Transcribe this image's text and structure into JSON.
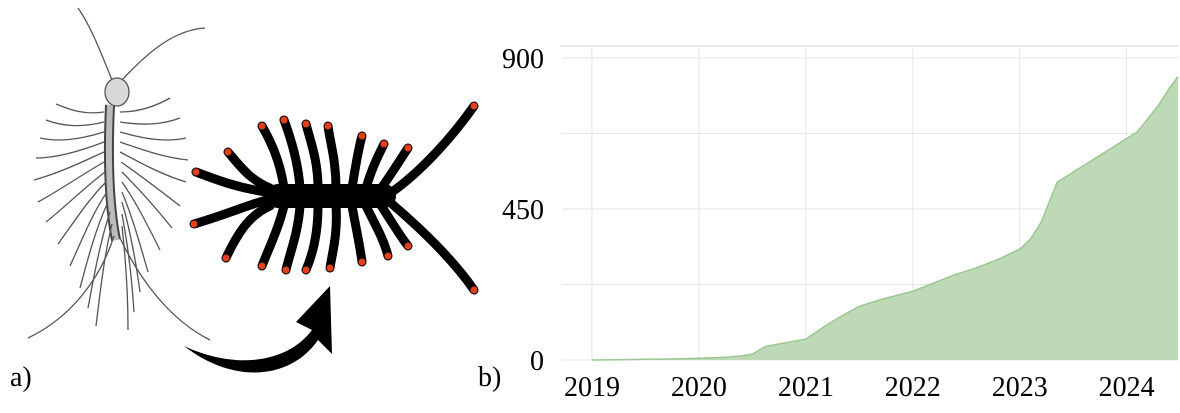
{
  "panels": {
    "a_label": "a)",
    "b_label": "b)"
  },
  "chart_data": {
    "type": "area",
    "title": "",
    "xlabel": "",
    "ylabel": "",
    "color": "#bdd9b5",
    "line_color": "#9cc792",
    "grid": true,
    "xlim": [
      2018.72,
      2024.48
    ],
    "ylim": [
      0,
      900
    ],
    "x_ticks": [
      {
        "value": 2019,
        "label": "2019"
      },
      {
        "value": 2020,
        "label": "2020"
      },
      {
        "value": 2021,
        "label": "2021"
      },
      {
        "value": 2022,
        "label": "2022"
      },
      {
        "value": 2023,
        "label": "2023"
      },
      {
        "value": 2024,
        "label": "2024"
      }
    ],
    "y_ticks": [
      {
        "value": 0,
        "label": "0"
      },
      {
        "value": 450,
        "label": "450"
      },
      {
        "value": 900,
        "label": "900"
      }
    ],
    "x": [
      2019.0,
      2019.25,
      2019.5,
      2019.75,
      2020.0,
      2020.25,
      2020.4,
      2020.5,
      2020.62,
      2020.75,
      2021.0,
      2021.15,
      2021.3,
      2021.5,
      2021.7,
      2022.0,
      2022.2,
      2022.4,
      2022.6,
      2022.8,
      2023.0,
      2023.1,
      2023.2,
      2023.25,
      2023.35,
      2023.5,
      2023.7,
      2023.9,
      2024.0,
      2024.1,
      2024.2,
      2024.3,
      2024.4,
      2024.48
    ],
    "series": [
      {
        "values": [
          0,
          1,
          2,
          3,
          5,
          8,
          12,
          18,
          40,
          48,
          62,
          95,
          125,
          160,
          180,
          205,
          230,
          255,
          275,
          300,
          330,
          360,
          410,
          450,
          530,
          560,
          600,
          640,
          660,
          680,
          720,
          760,
          810,
          845
        ]
      }
    ]
  }
}
